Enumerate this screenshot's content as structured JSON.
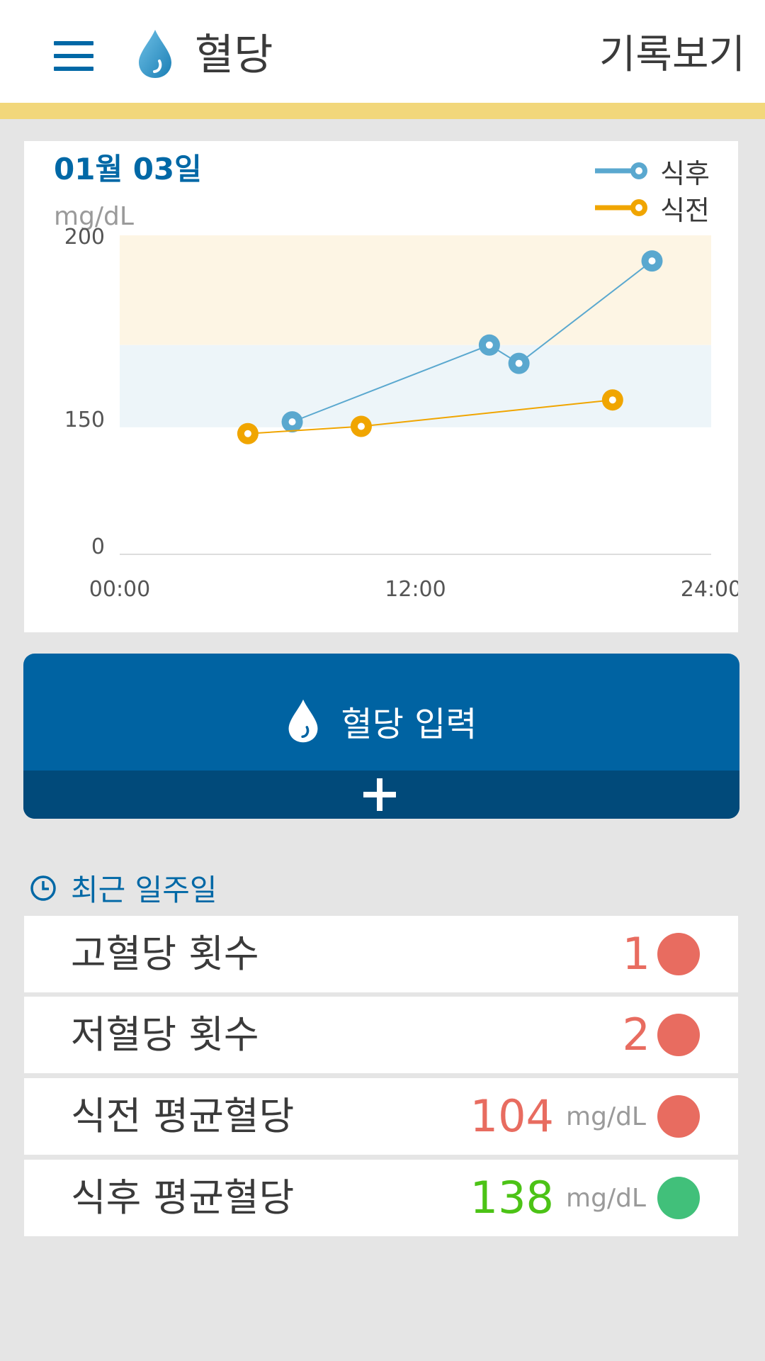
{
  "header": {
    "title": "혈당",
    "history_label": "기록보기",
    "drop_icon": "water-drop-icon",
    "menu_icon": "hamburger-menu-icon"
  },
  "colors": {
    "brand": "#0068a6",
    "accent_bar": "#f2d77b",
    "after_meal": "#5aa8cf",
    "before_meal": "#f0a500",
    "high_range_band": "#fdf5e4",
    "normal_range_band": "#edf5f9",
    "alert": "#e86c60",
    "good_text": "#4cc316",
    "good_dot": "#41c07a"
  },
  "chart_data": {
    "type": "line",
    "title": "01월 03일",
    "ylabel": "mg/dL",
    "xlabel": "",
    "x_ticks": [
      "00:00",
      "12:00",
      "24:00"
    ],
    "y_ticks": [
      "200",
      "150",
      "0"
    ],
    "legend_position": "top-right",
    "series": [
      {
        "name": "식후",
        "color": "#5aa8cf",
        "points": [
          {
            "x": "07:00",
            "y": 146
          },
          {
            "x": "15:00",
            "y": 170
          },
          {
            "x": "16:12",
            "y": 165
          },
          {
            "x": "21:36",
            "y": 193
          }
        ]
      },
      {
        "name": "식전",
        "color": "#f0a500",
        "points": [
          {
            "x": "05:12",
            "y": 133
          },
          {
            "x": "09:48",
            "y": 141
          },
          {
            "x": "20:00",
            "y": 155
          }
        ]
      }
    ],
    "bands": [
      {
        "from": 170,
        "to": 200,
        "color": "#fdf5e4"
      },
      {
        "from": 140,
        "to": 170,
        "color": "#edf5f9"
      }
    ],
    "grid": false
  },
  "input_button": {
    "label": "혈당 입력",
    "drop_icon": "water-drop-icon",
    "plus_icon": "plus-icon"
  },
  "recent": {
    "title": "최근 일주일",
    "icon": "clock-icon",
    "rows": [
      {
        "label": "고혈당 횟수",
        "value": "1",
        "unit": "",
        "status": "alert"
      },
      {
        "label": "저혈당 횟수",
        "value": "2",
        "unit": "",
        "status": "alert"
      },
      {
        "label": "식전 평균혈당",
        "value": "104",
        "unit": "mg/dL",
        "status": "alert"
      },
      {
        "label": "식후 평균혈당",
        "value": "138",
        "unit": "mg/dL",
        "status": "good"
      }
    ]
  }
}
